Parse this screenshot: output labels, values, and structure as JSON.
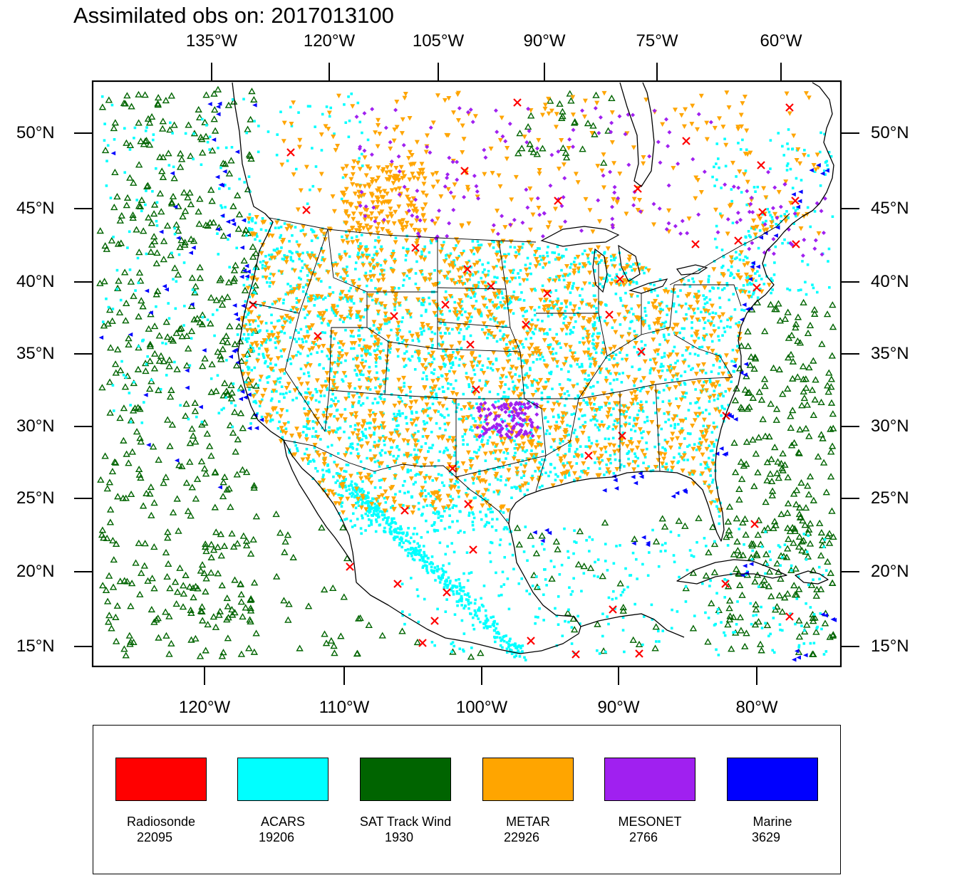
{
  "title": "Assimilated obs on: 2017013100",
  "axes": {
    "top_lon_labels": [
      "135°W",
      "120°W",
      "105°W",
      "90°W",
      "75°W",
      "60°W"
    ],
    "bottom_lon_labels": [
      "120°W",
      "110°W",
      "100°W",
      "90°W",
      "80°W"
    ],
    "left_lat_labels": [
      "50°N",
      "45°N",
      "40°N",
      "35°N",
      "30°N",
      "25°N",
      "20°N",
      "15°N"
    ],
    "right_lat_labels": [
      "50°N",
      "45°N",
      "40°N",
      "35°N",
      "30°N",
      "25°N",
      "20°N",
      "15°N"
    ]
  },
  "legend": {
    "items": [
      {
        "name": "Radiosonde",
        "count": "22095",
        "color": "#ff0000",
        "marker": "x-icon"
      },
      {
        "name": "ACARS",
        "count": "19206",
        "color": "#00ffff",
        "marker": "square-dot-icon"
      },
      {
        "name": "SAT Track Wind",
        "count": "1930",
        "color": "#006400",
        "marker": "open-triangle-icon"
      },
      {
        "name": "METAR",
        "count": "22926",
        "color": "#ffa500",
        "marker": "down-triangle-icon"
      },
      {
        "name": "MESONET",
        "count": "2766",
        "color": "#a020f0",
        "marker": "diamond-icon"
      },
      {
        "name": "Marine",
        "count": "3629",
        "color": "#0000ff",
        "marker": "left-triangle-icon"
      }
    ]
  }
}
